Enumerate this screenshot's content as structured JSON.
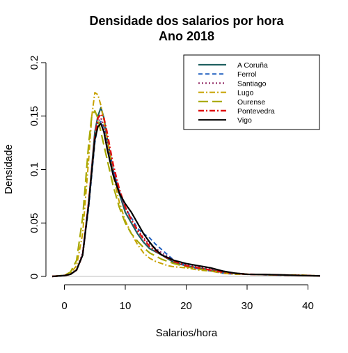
{
  "chart_data": {
    "type": "line",
    "title": "Densidade dos salarios por hora",
    "subtitle": "Ano 2018",
    "xlabel": "Salarios/hora",
    "ylabel": "Densidade",
    "xlim": [
      -2,
      42
    ],
    "ylim": [
      0,
      0.2
    ],
    "x_ticks": [
      0,
      10,
      20,
      30,
      40
    ],
    "x_tick_labels": [
      "0",
      "10",
      "20",
      "30",
      "40"
    ],
    "y_ticks": [
      0,
      0.05,
      0.1,
      0.15,
      0.2
    ],
    "y_tick_labels": [
      "0",
      "0.05",
      "0.1",
      "0.15",
      "0.2"
    ],
    "grid": false,
    "legend_position": "top-right",
    "series": [
      {
        "name": "A Coruña",
        "color": "#1f5f5f",
        "dash": "solid",
        "width": 2.2,
        "points": [
          [
            -2,
            0
          ],
          [
            0,
            0.0008
          ],
          [
            1,
            0.002
          ],
          [
            2,
            0.006
          ],
          [
            3,
            0.02
          ],
          [
            4,
            0.07
          ],
          [
            5,
            0.135
          ],
          [
            5.5,
            0.15
          ],
          [
            6,
            0.158
          ],
          [
            6.5,
            0.148
          ],
          [
            7,
            0.13
          ],
          [
            8,
            0.1
          ],
          [
            9,
            0.078
          ],
          [
            10,
            0.06
          ],
          [
            11,
            0.05
          ],
          [
            12,
            0.04
          ],
          [
            13,
            0.032
          ],
          [
            14,
            0.026
          ],
          [
            16,
            0.02
          ],
          [
            18,
            0.013
          ],
          [
            20,
            0.01
          ],
          [
            22,
            0.008
          ],
          [
            24,
            0.006
          ],
          [
            26,
            0.004
          ],
          [
            28,
            0.003
          ],
          [
            30,
            0.002
          ],
          [
            35,
            0.0015
          ],
          [
            38,
            0.001
          ],
          [
            42,
            0.0005
          ]
        ]
      },
      {
        "name": "Ferrol",
        "color": "#1f5fbf",
        "dash": "6,4",
        "width": 2,
        "points": [
          [
            -2,
            0
          ],
          [
            0,
            0.0008
          ],
          [
            1,
            0.002
          ],
          [
            2,
            0.006
          ],
          [
            3,
            0.02
          ],
          [
            4,
            0.065
          ],
          [
            5,
            0.125
          ],
          [
            5.5,
            0.142
          ],
          [
            6,
            0.145
          ],
          [
            6.5,
            0.14
          ],
          [
            7,
            0.125
          ],
          [
            8,
            0.1
          ],
          [
            9,
            0.08
          ],
          [
            10,
            0.064
          ],
          [
            11,
            0.055
          ],
          [
            12,
            0.045
          ],
          [
            13,
            0.04
          ],
          [
            14,
            0.036
          ],
          [
            15,
            0.03
          ],
          [
            16,
            0.025
          ],
          [
            18,
            0.015
          ],
          [
            20,
            0.01
          ],
          [
            22,
            0.007
          ],
          [
            24,
            0.005
          ],
          [
            26,
            0.003
          ],
          [
            28,
            0.002
          ],
          [
            30,
            0.002
          ],
          [
            35,
            0.0012
          ],
          [
            38,
            0.001
          ],
          [
            42,
            0.0005
          ]
        ]
      },
      {
        "name": "Santiago",
        "color": "#8b1a5a",
        "dash": "2,3",
        "width": 2,
        "points": [
          [
            -2,
            0
          ],
          [
            0,
            0.0008
          ],
          [
            1,
            0.002
          ],
          [
            2,
            0.006
          ],
          [
            3,
            0.022
          ],
          [
            4,
            0.07
          ],
          [
            5,
            0.13
          ],
          [
            5.5,
            0.145
          ],
          [
            6,
            0.148
          ],
          [
            6.5,
            0.14
          ],
          [
            7,
            0.125
          ],
          [
            8,
            0.1
          ],
          [
            9,
            0.08
          ],
          [
            10,
            0.064
          ],
          [
            11,
            0.053
          ],
          [
            12,
            0.044
          ],
          [
            13,
            0.036
          ],
          [
            14,
            0.03
          ],
          [
            16,
            0.022
          ],
          [
            18,
            0.015
          ],
          [
            20,
            0.011
          ],
          [
            22,
            0.009
          ],
          [
            24,
            0.007
          ],
          [
            26,
            0.005
          ],
          [
            28,
            0.003
          ],
          [
            30,
            0.002
          ],
          [
            35,
            0.0015
          ],
          [
            38,
            0.001
          ],
          [
            42,
            0.0005
          ]
        ]
      },
      {
        "name": "Lugo",
        "color": "#c8a200",
        "dash": "8,3,2,3",
        "width": 2,
        "points": [
          [
            -2,
            0
          ],
          [
            0,
            0.001
          ],
          [
            1,
            0.003
          ],
          [
            2,
            0.01
          ],
          [
            3,
            0.04
          ],
          [
            4,
            0.11
          ],
          [
            4.5,
            0.15
          ],
          [
            5,
            0.172
          ],
          [
            5.5,
            0.17
          ],
          [
            6,
            0.16
          ],
          [
            7,
            0.13
          ],
          [
            8,
            0.095
          ],
          [
            9,
            0.07
          ],
          [
            10,
            0.052
          ],
          [
            11,
            0.04
          ],
          [
            12,
            0.03
          ],
          [
            13,
            0.022
          ],
          [
            14,
            0.017
          ],
          [
            15,
            0.014
          ],
          [
            16,
            0.012
          ],
          [
            17,
            0.01
          ],
          [
            18,
            0.009
          ],
          [
            20,
            0.008
          ],
          [
            22,
            0.006
          ],
          [
            24,
            0.005
          ],
          [
            26,
            0.003
          ],
          [
            28,
            0.002
          ],
          [
            30,
            0.002
          ],
          [
            35,
            0.0012
          ],
          [
            38,
            0.0015
          ],
          [
            42,
            0.0005
          ]
        ]
      },
      {
        "name": "Ourense",
        "color": "#a8a800",
        "dash": "14,6",
        "width": 2.2,
        "points": [
          [
            -2,
            0
          ],
          [
            0,
            0.001
          ],
          [
            1,
            0.004
          ],
          [
            2,
            0.015
          ],
          [
            3,
            0.055
          ],
          [
            3.5,
            0.09
          ],
          [
            4,
            0.125
          ],
          [
            4.5,
            0.15
          ],
          [
            5,
            0.155
          ],
          [
            5.5,
            0.148
          ],
          [
            6,
            0.135
          ],
          [
            7,
            0.11
          ],
          [
            8,
            0.085
          ],
          [
            9,
            0.065
          ],
          [
            10,
            0.05
          ],
          [
            11,
            0.04
          ],
          [
            12,
            0.033
          ],
          [
            13,
            0.027
          ],
          [
            14,
            0.022
          ],
          [
            16,
            0.016
          ],
          [
            18,
            0.012
          ],
          [
            20,
            0.009
          ],
          [
            22,
            0.007
          ],
          [
            24,
            0.005
          ],
          [
            26,
            0.004
          ],
          [
            28,
            0.003
          ],
          [
            30,
            0.002
          ],
          [
            35,
            0.0015
          ],
          [
            38,
            0.001
          ],
          [
            42,
            0.0005
          ]
        ]
      },
      {
        "name": "Pontevedra",
        "color": "#e01010",
        "dash": "8,3,2,3",
        "width": 2.4,
        "points": [
          [
            -2,
            0
          ],
          [
            0,
            0.0008
          ],
          [
            1,
            0.002
          ],
          [
            2,
            0.006
          ],
          [
            3,
            0.02
          ],
          [
            4,
            0.07
          ],
          [
            5,
            0.13
          ],
          [
            5.5,
            0.148
          ],
          [
            6,
            0.152
          ],
          [
            6.5,
            0.148
          ],
          [
            7,
            0.135
          ],
          [
            8,
            0.105
          ],
          [
            9,
            0.082
          ],
          [
            10,
            0.065
          ],
          [
            11,
            0.053
          ],
          [
            12,
            0.043
          ],
          [
            13,
            0.035
          ],
          [
            14,
            0.028
          ],
          [
            16,
            0.02
          ],
          [
            18,
            0.014
          ],
          [
            20,
            0.01
          ],
          [
            22,
            0.008
          ],
          [
            24,
            0.006
          ],
          [
            26,
            0.004
          ],
          [
            28,
            0.003
          ],
          [
            30,
            0.002
          ],
          [
            35,
            0.0015
          ],
          [
            38,
            0.001
          ],
          [
            42,
            0.0005
          ]
        ]
      },
      {
        "name": "Vigo",
        "color": "#000000",
        "dash": "solid",
        "width": 2.2,
        "points": [
          [
            -2,
            0
          ],
          [
            0,
            0.0008
          ],
          [
            1,
            0.002
          ],
          [
            2,
            0.006
          ],
          [
            3,
            0.02
          ],
          [
            4,
            0.068
          ],
          [
            5,
            0.128
          ],
          [
            5.5,
            0.14
          ],
          [
            6,
            0.143
          ],
          [
            6.5,
            0.135
          ],
          [
            7,
            0.12
          ],
          [
            8,
            0.095
          ],
          [
            9,
            0.078
          ],
          [
            10,
            0.068
          ],
          [
            11,
            0.06
          ],
          [
            12,
            0.05
          ],
          [
            13,
            0.04
          ],
          [
            14,
            0.032
          ],
          [
            15,
            0.025
          ],
          [
            16,
            0.02
          ],
          [
            18,
            0.015
          ],
          [
            20,
            0.012
          ],
          [
            22,
            0.01
          ],
          [
            24,
            0.008
          ],
          [
            26,
            0.005
          ],
          [
            28,
            0.003
          ],
          [
            30,
            0.002
          ],
          [
            35,
            0.0015
          ],
          [
            38,
            0.001
          ],
          [
            42,
            0.0005
          ]
        ]
      }
    ]
  }
}
